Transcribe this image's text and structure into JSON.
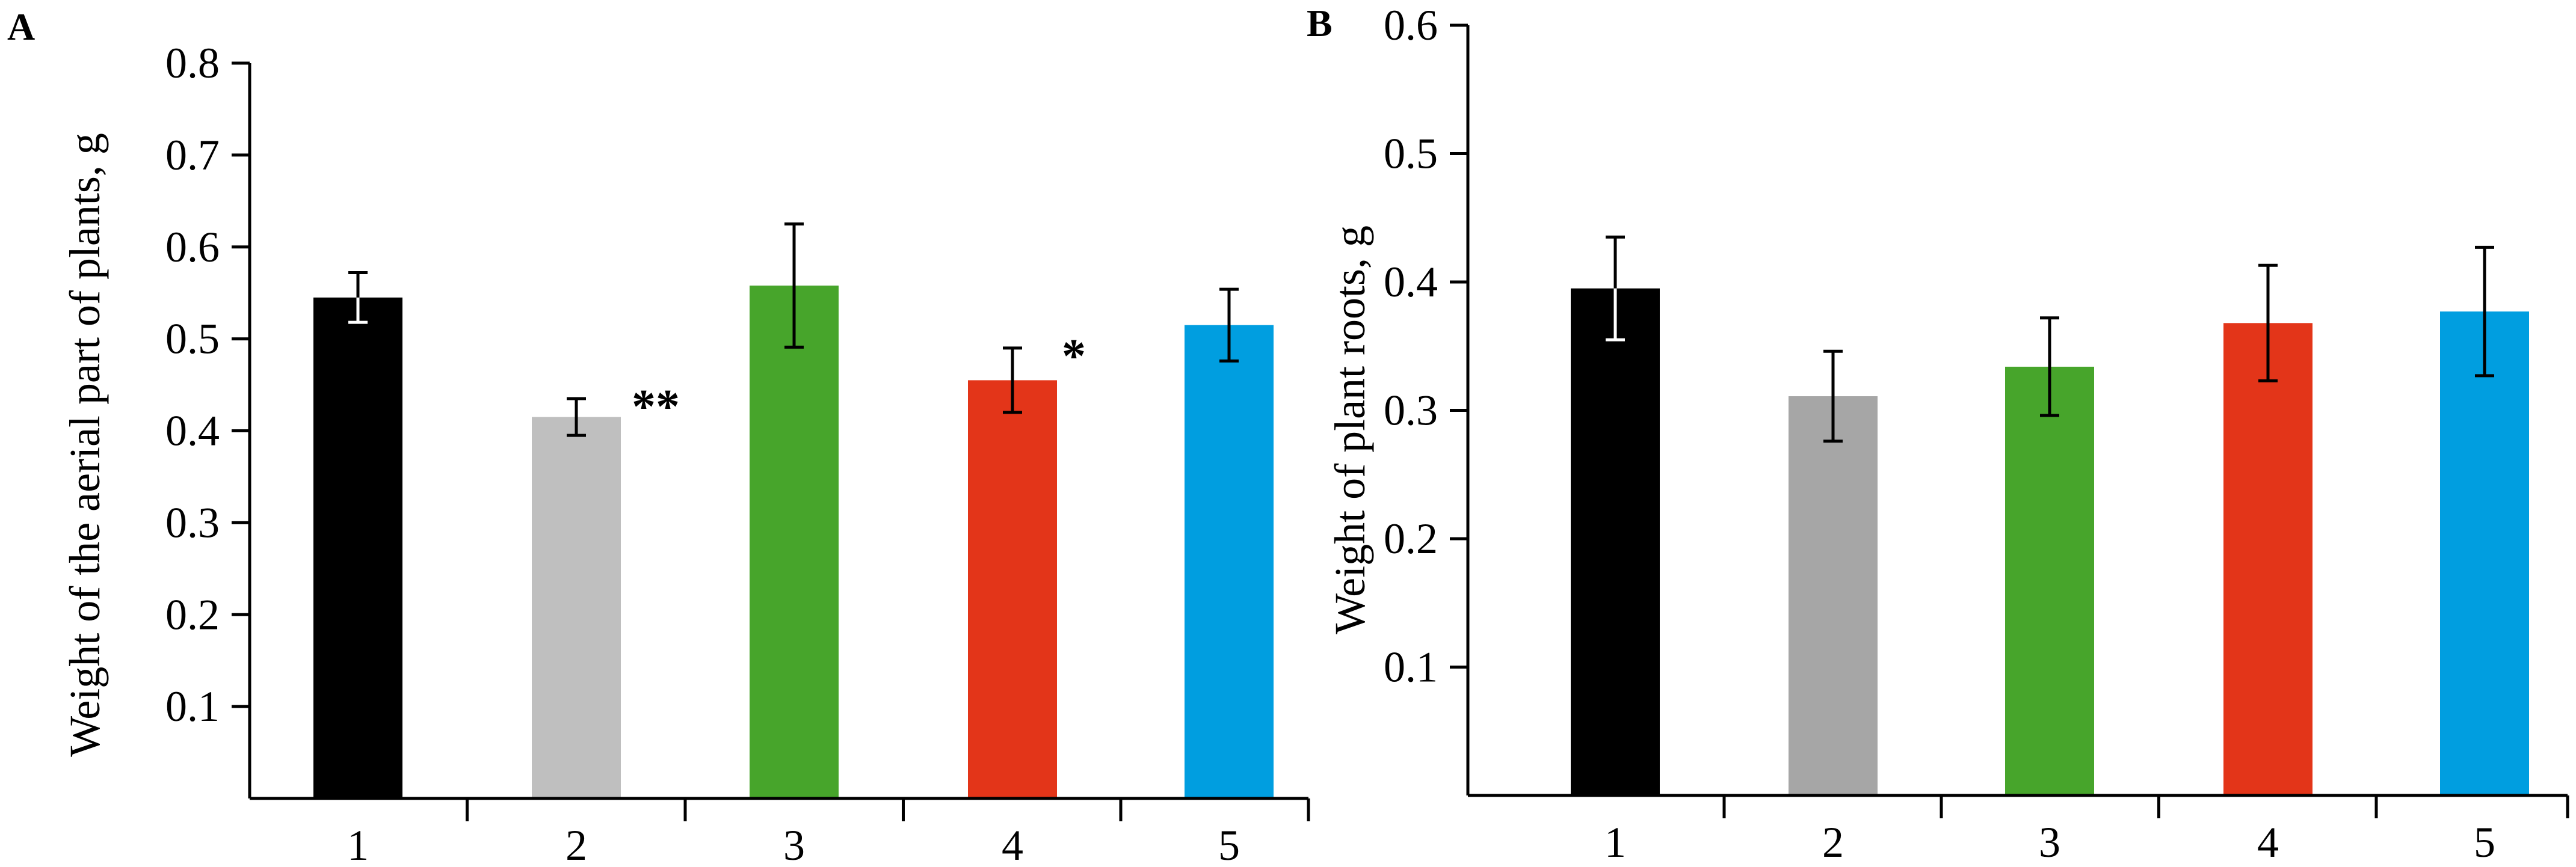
{
  "chart_data": [
    {
      "panel": "A",
      "type": "bar",
      "title": "",
      "xlabel": "",
      "ylabel": "Weight of the aerial part of plants, g",
      "ylim": [
        0,
        0.8
      ],
      "yticks": [
        "0.1",
        "0.2",
        "0.3",
        "0.4",
        "0.5",
        "0.6",
        "0.7",
        "0.8"
      ],
      "categories": [
        "1",
        "2",
        "3",
        "4",
        "5"
      ],
      "values": [
        0.545,
        0.415,
        0.558,
        0.455,
        0.515
      ],
      "errors": [
        0.027,
        0.02,
        0.067,
        0.035,
        0.039
      ],
      "annotations": [
        "",
        "**",
        "",
        "*",
        ""
      ],
      "colors": [
        "#000000",
        "#bfbfbf",
        "#47a52b",
        "#e33519",
        "#009ee0"
      ],
      "grid": false
    },
    {
      "panel": "B",
      "type": "bar",
      "title": "",
      "xlabel": "",
      "ylabel": "Weight of plant roots, g",
      "ylim": [
        0,
        0.6
      ],
      "yticks": [
        "0.1",
        "0.2",
        "0.3",
        "0.4",
        "0.5",
        "0.6"
      ],
      "categories": [
        "1",
        "2",
        "3",
        "4",
        "5"
      ],
      "values": [
        0.395,
        0.311,
        0.334,
        0.368,
        0.377
      ],
      "errors": [
        0.04,
        0.035,
        0.038,
        0.045,
        0.05
      ],
      "annotations": [
        "",
        "",
        "",
        "",
        ""
      ],
      "colors": [
        "#000000",
        "#a6a6a6",
        "#47a52b",
        "#e33519",
        "#009ee0"
      ],
      "grid": false
    }
  ]
}
